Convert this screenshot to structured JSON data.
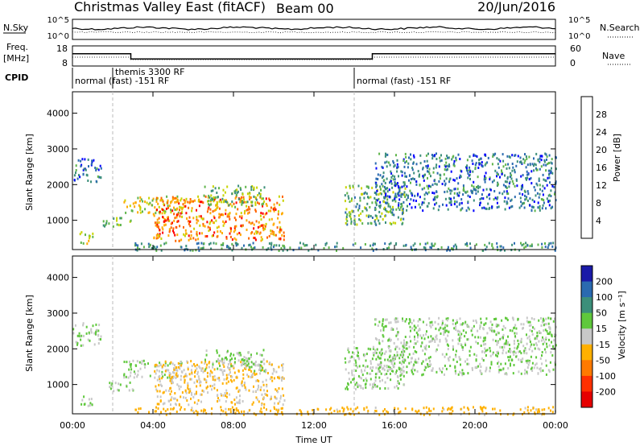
{
  "header": {
    "title": "Christmas Valley East (fitACF)",
    "beam": "Beam 00",
    "date": "20/Jun/2016"
  },
  "top_panels": {
    "nsky_label": "N.Sky",
    "nsearch_label": "N.Search",
    "noise_ticks": [
      "10^5",
      "10^0"
    ],
    "freq_label_line1": "Freq.",
    "freq_label_line2": "[MHz]",
    "freq_ticks": [
      "18",
      "8"
    ],
    "nave_label": "Nave",
    "nave_ticks": [
      "60",
      "0"
    ],
    "cpid_label": "CPID"
  },
  "cpid_segments": [
    {
      "label": "normal (fast) -151 RF",
      "start_hour": 0.0
    },
    {
      "label": "themis 3300 RF",
      "start_hour": 2.0
    },
    {
      "label": "normal (fast) -151 RF",
      "start_hour": 14.0
    }
  ],
  "x_axis": {
    "label": "Time UT",
    "ticks": [
      "00:00",
      "04:00",
      "08:00",
      "12:00",
      "16:00",
      "20:00",
      "00:00"
    ],
    "range_hours": [
      0,
      24
    ]
  },
  "power_panel": {
    "ylabel": "Slant Range [km]",
    "yticks": [
      "4000",
      "3000",
      "2000",
      "1000"
    ],
    "colorbar_label": "Power [dB]",
    "colorbar_ticks": [
      "28",
      "24",
      "20",
      "16",
      "12",
      "8",
      "4"
    ],
    "colors": [
      "#0000ff",
      "#2a6ab0",
      "#3c8f7a",
      "#5fb54a",
      "#c8d400",
      "#ffaa00",
      "#ff6600",
      "#ff0000"
    ]
  },
  "velocity_panel": {
    "ylabel": "Slant Range [km]",
    "yticks": [
      "4000",
      "3000",
      "2000",
      "1000"
    ],
    "colorbar_label": "Velocity [m s⁻¹]",
    "colorbar_ticks": [
      "200",
      "100",
      "50",
      "15",
      "-15",
      "-50",
      "-100",
      "-200"
    ],
    "colors": [
      "#1a1aa8",
      "#2a6ab0",
      "#3c8f7a",
      "#5fc83c",
      "#c8c8c8",
      "#ffb000",
      "#ff7a00",
      "#ff3000",
      "#e60000"
    ]
  },
  "chart_data": {
    "type": "heatmap",
    "x_label": "Time UT",
    "y_label": "Slant Range [km]",
    "x_range_hours": [
      0,
      24
    ],
    "y_range_km": [
      180,
      4600
    ],
    "echo_regions": [
      {
        "t_start": 0.0,
        "t_end": 1.4,
        "r_min": 2100,
        "r_max": 2750,
        "power_db": 8,
        "velocity": 15
      },
      {
        "t_start": 0.3,
        "t_end": 1.0,
        "r_min": 350,
        "r_max": 700,
        "power_db": 16,
        "velocity": 15
      },
      {
        "t_start": 1.5,
        "t_end": 3.0,
        "r_min": 850,
        "r_max": 1100,
        "power_db": 14,
        "velocity": 15
      },
      {
        "t_start": 2.5,
        "t_end": 5.5,
        "r_min": 1200,
        "r_max": 1700,
        "power_db": 18,
        "velocity": 15
      },
      {
        "t_start": 4.0,
        "t_end": 10.5,
        "r_min": 450,
        "r_max": 1700,
        "power_db": 24,
        "velocity": -15
      },
      {
        "t_start": 6.5,
        "t_end": 9.5,
        "r_min": 1400,
        "r_max": 2000,
        "power_db": 14,
        "velocity": 15
      },
      {
        "t_start": 13.5,
        "t_end": 16.5,
        "r_min": 900,
        "r_max": 2100,
        "power_db": 12,
        "velocity": 15
      },
      {
        "t_start": 15.0,
        "t_end": 24.0,
        "r_min": 1300,
        "r_max": 2900,
        "power_db": 8,
        "velocity": 15
      },
      {
        "t_start": 3.0,
        "t_end": 24.0,
        "r_min": 180,
        "r_max": 400,
        "power_db": 10,
        "velocity": -30
      }
    ],
    "freq_mhz_segments": [
      {
        "t_start": 0.0,
        "t_end": 2.9,
        "value": 14.5
      },
      {
        "t_start": 2.9,
        "t_end": 14.9,
        "value": 11.5
      },
      {
        "t_start": 14.9,
        "t_end": 24.0,
        "value": 14.5
      }
    ]
  }
}
